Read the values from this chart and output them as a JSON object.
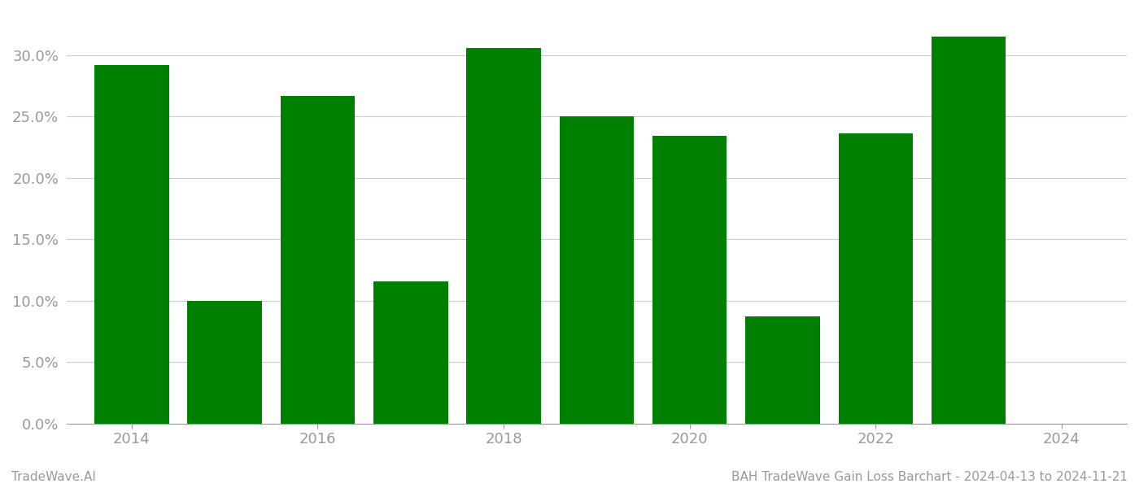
{
  "years": [
    2014,
    2015,
    2016,
    2017,
    2018,
    2019,
    2020,
    2021,
    2022,
    2023
  ],
  "values": [
    0.292,
    0.1,
    0.267,
    0.116,
    0.306,
    0.25,
    0.234,
    0.087,
    0.236,
    0.315
  ],
  "bar_color": "#008000",
  "bar_width": 0.8,
  "footer_left": "TradeWave.AI",
  "footer_right": "BAH TradeWave Gain Loss Barchart - 2024-04-13 to 2024-11-21",
  "xticks": [
    2014,
    2016,
    2018,
    2020,
    2022,
    2024
  ],
  "yticks": [
    0.0,
    0.05,
    0.1,
    0.15,
    0.2,
    0.25,
    0.3
  ],
  "xlim": [
    2013.3,
    2024.7
  ],
  "ylim": [
    0.0,
    0.335
  ],
  "background_color": "#ffffff",
  "grid_color": "#cccccc",
  "tick_color": "#999999",
  "footer_fontsize": 11,
  "tick_fontsize": 13
}
